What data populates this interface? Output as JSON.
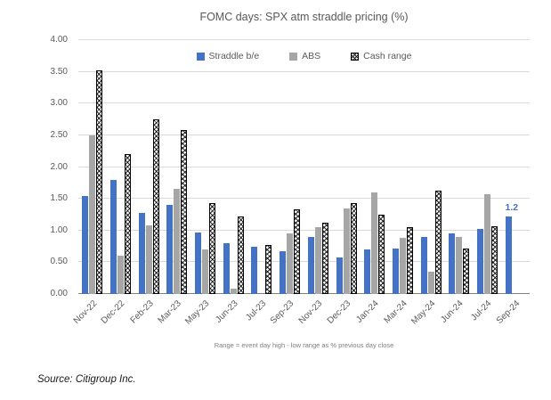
{
  "chart_data": {
    "type": "bar",
    "title": "FOMC days: SPX atm straddle pricing (%)",
    "categories": [
      "Nov-22",
      "Dec-22",
      "Feb-23",
      "Mar-23",
      "May-23",
      "Jun-23",
      "Jul-23",
      "Sep-23",
      "Nov-23",
      "Dec-23",
      "Jan-24",
      "Mar-24",
      "May-24",
      "Jun-24",
      "Jul-24",
      "Sep-24"
    ],
    "series": [
      {
        "name": "Straddle b/e",
        "color": "#4472c4",
        "values": [
          1.55,
          1.8,
          1.28,
          1.4,
          0.97,
          0.8,
          0.75,
          0.67,
          0.9,
          0.58,
          0.7,
          0.72,
          0.9,
          0.95,
          1.03,
          1.22
        ]
      },
      {
        "name": "ABS",
        "color": "#a6a6a6",
        "values": [
          2.5,
          0.6,
          1.08,
          1.65,
          0.7,
          0.08,
          null,
          0.95,
          1.05,
          1.35,
          1.6,
          0.88,
          0.35,
          0.9,
          1.57,
          null
        ]
      },
      {
        "name": "Cash range",
        "color": "#ffffff",
        "pattern": "crosshatch",
        "values": [
          3.52,
          2.2,
          2.75,
          2.58,
          1.43,
          1.22,
          0.77,
          1.33,
          1.13,
          1.43,
          1.25,
          1.05,
          1.63,
          0.72,
          1.07,
          null
        ]
      }
    ],
    "ylim": [
      0,
      4.0
    ],
    "ytick_step": 0.5,
    "ytick_decimals": 2,
    "grid": true,
    "legend_position": "top-center",
    "annotation": {
      "category": "Sep-24",
      "series": "Straddle b/e",
      "text": "1.2",
      "color": "#4472c4"
    },
    "footnote": "Range = event day high - low range as % previous day close"
  },
  "source_note": "Source: Citigroup Inc."
}
